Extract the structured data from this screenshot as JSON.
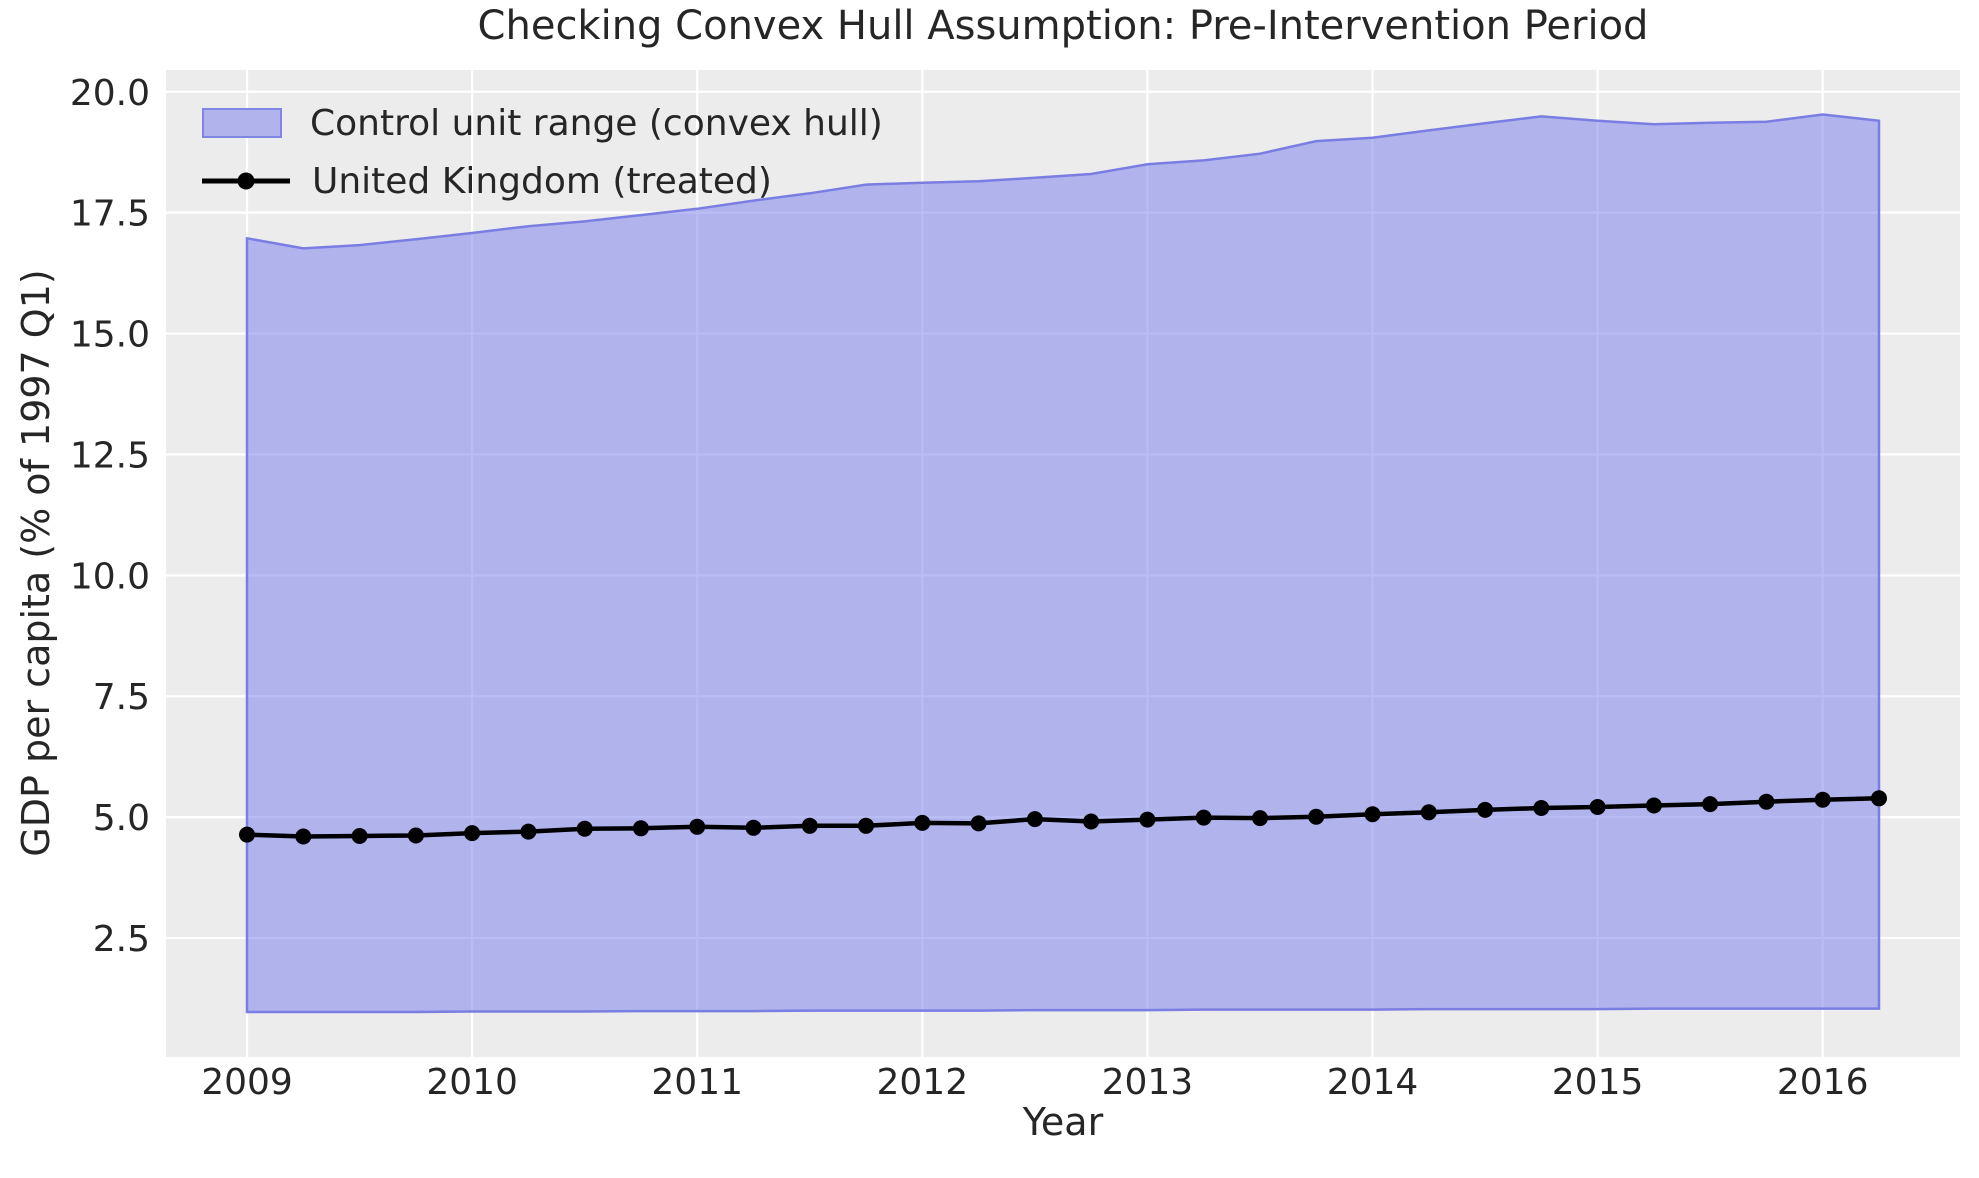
{
  "chart_data": {
    "type": "area",
    "title": "Checking Convex Hull Assumption: Pre-Intervention Period",
    "xlabel": "Year",
    "ylabel": "GDP per capita (% of 1997 Q1)",
    "x": [
      2009.0,
      2009.25,
      2009.5,
      2009.75,
      2010.0,
      2010.25,
      2010.5,
      2010.75,
      2011.0,
      2011.25,
      2011.5,
      2011.75,
      2012.0,
      2012.25,
      2012.5,
      2012.75,
      2013.0,
      2013.25,
      2013.5,
      2013.75,
      2014.0,
      2014.25,
      2014.5,
      2014.75,
      2015.0,
      2015.25,
      2015.5,
      2015.75,
      2016.0,
      2016.25
    ],
    "series": [
      {
        "name": "Control unit range (convex hull)",
        "type": "band",
        "upper": [
          16.97,
          16.76,
          16.83,
          16.95,
          17.08,
          17.22,
          17.32,
          17.45,
          17.58,
          17.75,
          17.9,
          18.08,
          18.12,
          18.15,
          18.22,
          18.3,
          18.5,
          18.58,
          18.72,
          18.98,
          19.05,
          19.2,
          19.35,
          19.49,
          19.4,
          19.33,
          19.36,
          19.38,
          19.53,
          19.4
        ],
        "lower": [
          0.97,
          0.97,
          0.97,
          0.97,
          0.98,
          0.98,
          0.98,
          0.99,
          0.99,
          0.99,
          1.0,
          1.0,
          1.0,
          1.0,
          1.01,
          1.01,
          1.01,
          1.02,
          1.02,
          1.02,
          1.02,
          1.03,
          1.03,
          1.03,
          1.03,
          1.04,
          1.04,
          1.04,
          1.04,
          1.04
        ],
        "fill": "#767aec",
        "fill_opacity": 0.5,
        "edge_color": "#7a7ee2"
      },
      {
        "name": "United Kingdom (treated)",
        "type": "line-marker",
        "values": [
          4.64,
          4.6,
          4.61,
          4.62,
          4.67,
          4.7,
          4.76,
          4.77,
          4.8,
          4.78,
          4.82,
          4.82,
          4.88,
          4.87,
          4.96,
          4.91,
          4.95,
          4.99,
          4.98,
          5.01,
          5.06,
          5.1,
          5.15,
          5.19,
          5.21,
          5.24,
          5.27,
          5.32,
          5.36,
          5.39
        ],
        "color": "#000000"
      }
    ],
    "xlim": [
      2008.64,
      2016.61
    ],
    "ylim": [
      0.04,
      20.45
    ],
    "xticks": {
      "values": [
        2009,
        2010,
        2011,
        2012,
        2013,
        2014,
        2015,
        2016
      ],
      "labels": [
        "2009",
        "2010",
        "2011",
        "2012",
        "2013",
        "2014",
        "2015",
        "2016"
      ]
    },
    "yticks": {
      "values": [
        2.5,
        5.0,
        7.5,
        10.0,
        12.5,
        15.0,
        17.5,
        20.0
      ],
      "labels": [
        "2.5",
        "5.0",
        "7.5",
        "10.0",
        "12.5",
        "15.0",
        "17.5",
        "20.0"
      ]
    },
    "grid": "on",
    "legend_position": "upper-left",
    "colors": {
      "plot_bg": "#ececec",
      "grid": "#ffffff",
      "text": "#262626"
    }
  }
}
